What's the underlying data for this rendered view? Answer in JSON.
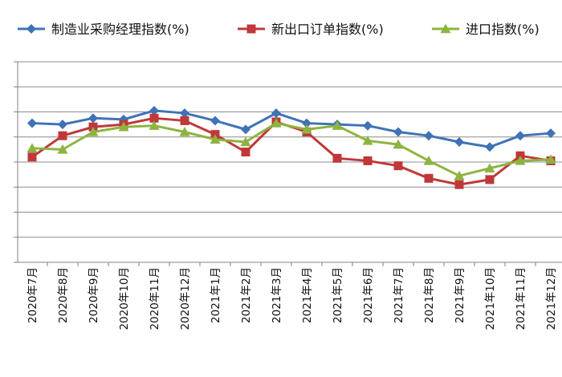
{
  "chart_data": {
    "type": "line",
    "title": "",
    "xlabel": "",
    "ylabel": "",
    "ylim": [
      40,
      56
    ],
    "y_ticks": [
      40,
      42,
      44,
      46,
      48,
      50,
      52,
      54,
      56
    ],
    "y_tick_labels_visible": false,
    "grid": "horizontal",
    "legend_position": "top",
    "categories": [
      "2020年7月",
      "2020年8月",
      "2020年9月",
      "2020年10月",
      "2020年11月",
      "2020年12月",
      "2021年1月",
      "2021年2月",
      "2021年3月",
      "2021年4月",
      "2021年5月",
      "2021年6月",
      "2021年7月",
      "2021年8月",
      "2021年9月",
      "2021年10月",
      "2021年11月",
      "2021年12月"
    ],
    "series": [
      {
        "name": "制造业采购经理指数(%)",
        "color": "#3F73B5",
        "marker": "diamond",
        "values": [
          51.1,
          51.0,
          51.5,
          51.4,
          52.1,
          51.9,
          51.3,
          50.6,
          51.9,
          51.1,
          51.0,
          50.9,
          50.4,
          50.1,
          49.6,
          49.2,
          50.1,
          50.3
        ]
      },
      {
        "name": "新出口订单指数(%)",
        "color": "#C0383A",
        "marker": "square",
        "values": [
          48.4,
          50.1,
          50.8,
          51.0,
          51.5,
          51.3,
          50.2,
          48.8,
          51.2,
          50.4,
          48.3,
          48.1,
          47.7,
          46.7,
          46.2,
          46.6,
          48.5,
          48.1
        ]
      },
      {
        "name": "进口指数(%)",
        "color": "#8DB43F",
        "marker": "triangle",
        "values": [
          49.1,
          49.0,
          50.4,
          50.8,
          50.9,
          50.4,
          49.8,
          49.6,
          51.1,
          50.6,
          50.9,
          49.7,
          49.4,
          48.1,
          46.9,
          47.5,
          48.1,
          48.2
        ]
      }
    ]
  }
}
